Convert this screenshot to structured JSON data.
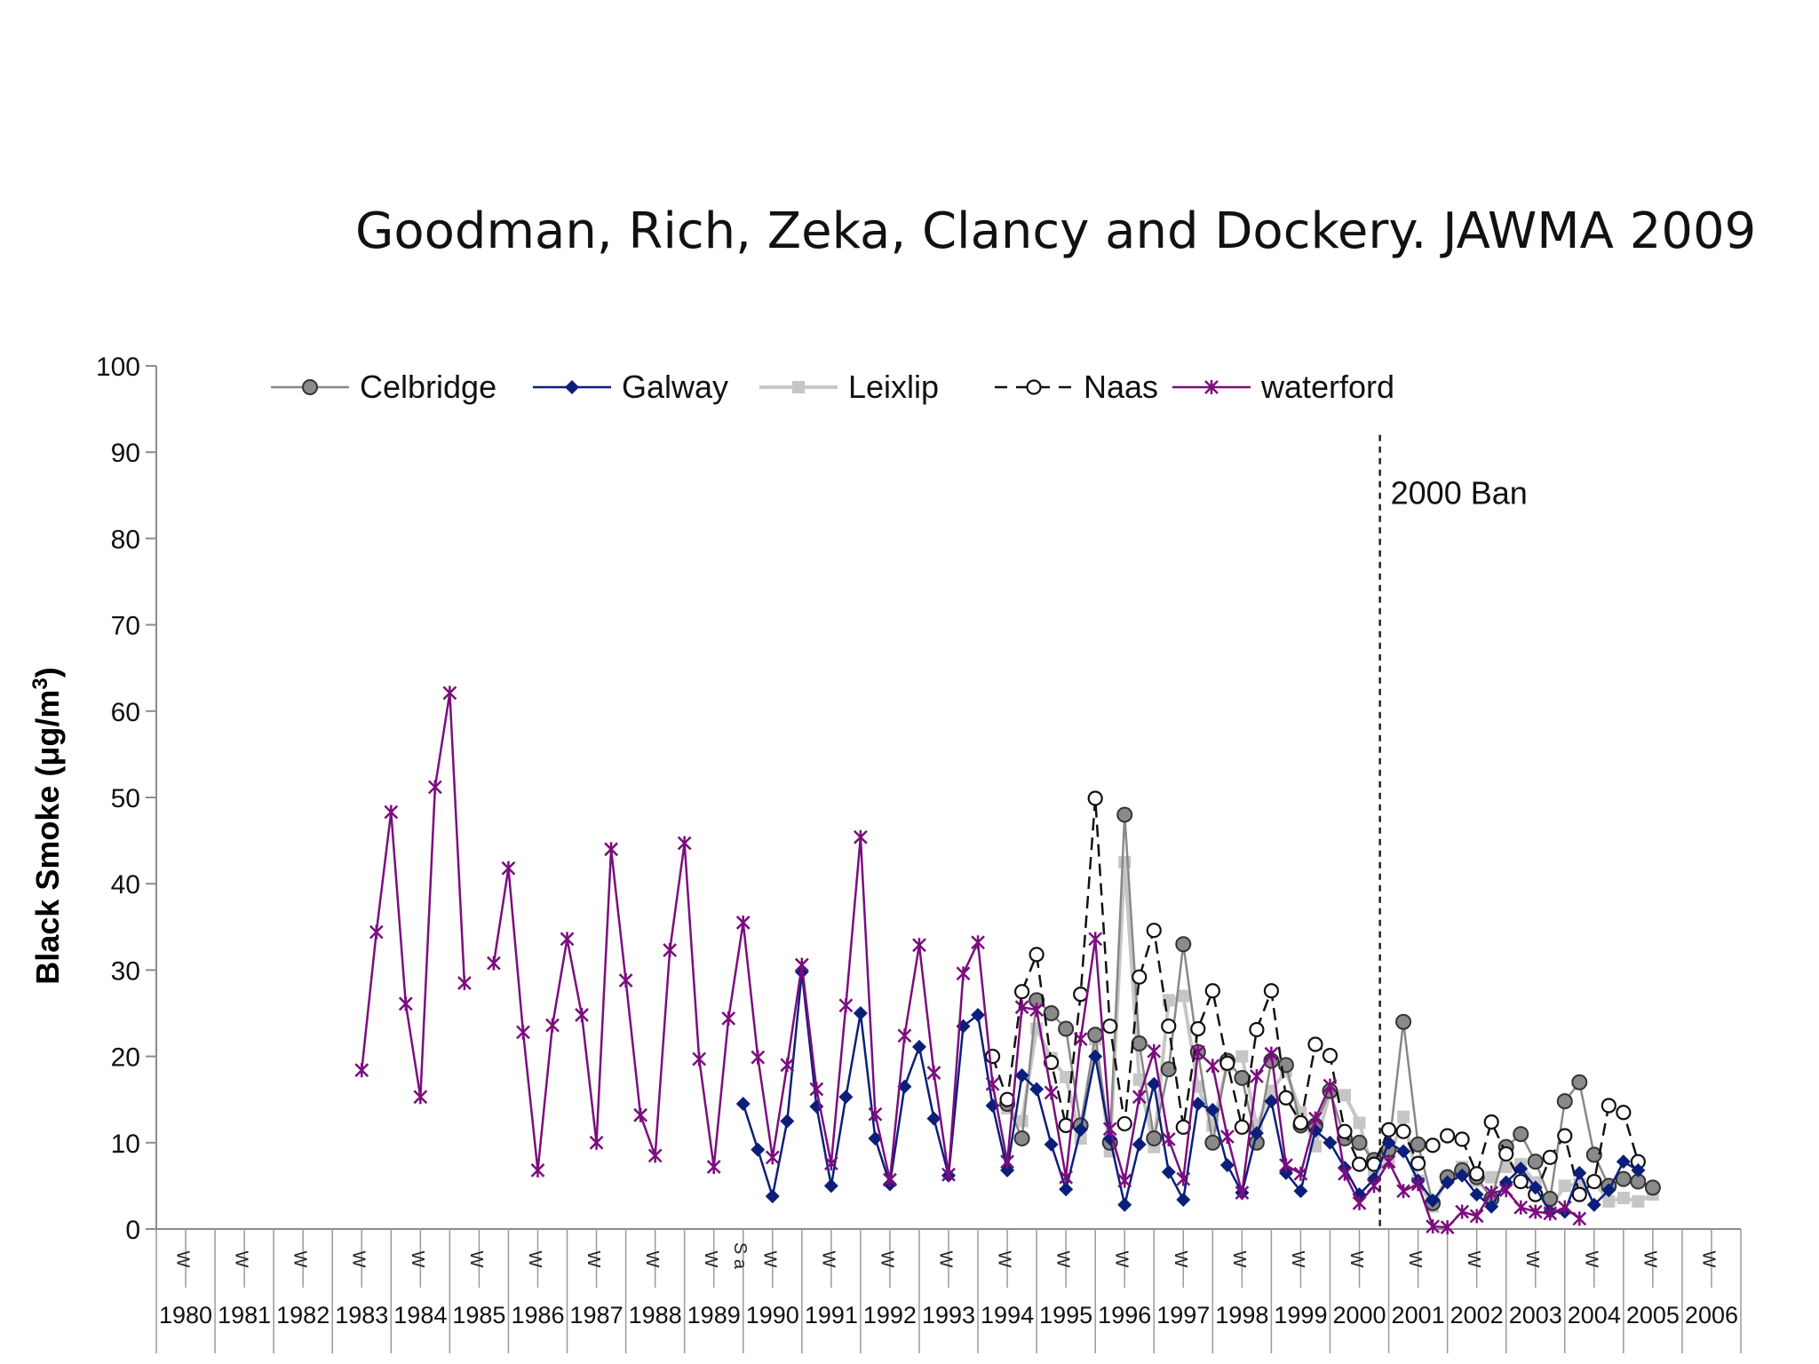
{
  "page_title": "Goodman, Rich, Zeka, Clancy and Dockery. JAWMA 2009",
  "chart_data": {
    "type": "line",
    "title": "Goodman, Rich, Zeka, Clancy and Dockery. JAWMA 2009",
    "ylabel": "Black Smoke (μg/m3)",
    "xlabel": "",
    "ylim": [
      0,
      100
    ],
    "yticks": [
      0,
      10,
      20,
      30,
      40,
      50,
      60,
      70,
      80,
      90,
      100
    ],
    "grid": false,
    "legend_position": "top",
    "x_unit": "season index (two per year: winter, summer)",
    "years": [
      "1980",
      "1981",
      "1982",
      "1983",
      "1984",
      "1985",
      "1986",
      "1987",
      "1988",
      "1989",
      "1990",
      "1991",
      "1992",
      "1993",
      "1994",
      "1995",
      "1996",
      "1997",
      "1998",
      "1999",
      "2000",
      "2001",
      "2002",
      "2003",
      "2004",
      "2005",
      "2006"
    ],
    "season_labels": [
      "W",
      "S"
    ],
    "winter_label": "W",
    "stray_label": "S a",
    "annotation": {
      "label": "2000 Ban",
      "x": 41.7
    },
    "series": [
      {
        "name": "Celbridge",
        "color": "#888888",
        "marker": "circle-filled",
        "dash": "solid",
        "points": [
          [
            29,
            14.5
          ],
          [
            29.5,
            10.5
          ],
          [
            30,
            26.5
          ],
          [
            30.5,
            25
          ],
          [
            31,
            23.2
          ],
          [
            31.5,
            12
          ],
          [
            32,
            22.5
          ],
          [
            32.5,
            10
          ],
          [
            33,
            48
          ],
          [
            33.5,
            21.5
          ],
          [
            34,
            10.5
          ],
          [
            34.5,
            18.5
          ],
          [
            35,
            33
          ],
          [
            35.5,
            20.5
          ],
          [
            36,
            10
          ],
          [
            36.5,
            19.5
          ],
          [
            37,
            17.5
          ],
          [
            37.5,
            10
          ],
          [
            38,
            19.5
          ],
          [
            38.5,
            19
          ],
          [
            39,
            12
          ],
          [
            39.5,
            12
          ],
          [
            40,
            16
          ],
          [
            40.5,
            10.5
          ],
          [
            41,
            10
          ],
          [
            41.5,
            8
          ],
          [
            42,
            9.2
          ],
          [
            42.5,
            24
          ],
          [
            43,
            9.8
          ],
          [
            43.5,
            3
          ],
          [
            44,
            6
          ],
          [
            44.5,
            6.8
          ],
          [
            45,
            6
          ],
          [
            45.5,
            3.5
          ],
          [
            46,
            9.5
          ],
          [
            46.5,
            11
          ],
          [
            47,
            7.8
          ],
          [
            47.5,
            3.5
          ],
          [
            48,
            14.8
          ],
          [
            48.5,
            17
          ],
          [
            49,
            8.6
          ],
          [
            49.5,
            5
          ],
          [
            50,
            5.8
          ],
          [
            50.5,
            5.5
          ],
          [
            51,
            4.8
          ]
        ]
      },
      {
        "name": "Galway",
        "color": "#0b1f7a",
        "marker": "diamond",
        "dash": "solid",
        "points": [
          [
            20,
            14.5
          ],
          [
            20.5,
            9.2
          ],
          [
            21,
            3.8
          ],
          [
            21.5,
            12.5
          ],
          [
            22,
            29.8
          ],
          [
            22.5,
            14.2
          ],
          [
            23,
            5
          ],
          [
            23.5,
            15.3
          ],
          [
            24,
            25
          ],
          [
            24.5,
            10.5
          ],
          [
            25,
            5.2
          ],
          [
            25.5,
            16.5
          ],
          [
            26,
            21.1
          ],
          [
            26.5,
            12.8
          ],
          [
            27,
            6.2
          ],
          [
            27.5,
            23.5
          ],
          [
            28,
            24.8
          ],
          [
            28.5,
            14.3
          ],
          [
            29,
            6.8
          ],
          [
            29.5,
            17.8
          ],
          [
            30,
            16.2
          ],
          [
            30.5,
            9.8
          ],
          [
            31,
            4.6
          ],
          [
            31.5,
            11.5
          ],
          [
            32,
            20
          ],
          [
            32.5,
            10.5
          ],
          [
            33,
            2.8
          ],
          [
            33.5,
            9.8
          ],
          [
            34,
            16.8
          ],
          [
            34.5,
            6.6
          ],
          [
            35,
            3.4
          ],
          [
            35.5,
            14.5
          ],
          [
            36,
            13.8
          ],
          [
            36.5,
            7.4
          ],
          [
            37,
            4.2
          ],
          [
            37.5,
            11.1
          ],
          [
            38,
            14.8
          ],
          [
            38.5,
            6.5
          ],
          [
            39,
            4.4
          ],
          [
            39.5,
            11.4
          ],
          [
            40,
            10
          ],
          [
            40.5,
            7.1
          ],
          [
            41,
            4
          ],
          [
            41.5,
            5.8
          ],
          [
            42,
            10
          ],
          [
            42.5,
            9
          ],
          [
            43,
            5.6
          ],
          [
            43.5,
            3.3
          ],
          [
            44,
            5.4
          ],
          [
            44.5,
            6.2
          ],
          [
            45,
            4
          ],
          [
            45.5,
            2.6
          ],
          [
            46,
            5.4
          ],
          [
            46.5,
            7
          ],
          [
            47,
            4.8
          ],
          [
            47.5,
            2
          ],
          [
            48,
            2
          ],
          [
            48.5,
            6.5
          ],
          [
            49,
            2.8
          ],
          [
            49.5,
            4.5
          ],
          [
            50,
            7.8
          ],
          [
            50.5,
            6.8
          ]
        ]
      },
      {
        "name": "Leixlip",
        "color": "#c6c6c6",
        "marker": "square",
        "dash": "solid",
        "points": [
          [
            29,
            14
          ],
          [
            29.5,
            12.5
          ],
          [
            30,
            23.2
          ],
          [
            30.5,
            19.8
          ],
          [
            31,
            17.6
          ],
          [
            31.5,
            10.5
          ],
          [
            32,
            22
          ],
          [
            32.5,
            9
          ],
          [
            33,
            42.5
          ],
          [
            33.5,
            17.3
          ],
          [
            34,
            9.5
          ],
          [
            34.5,
            26.5
          ],
          [
            35,
            27
          ],
          [
            35.5,
            16.5
          ],
          [
            36,
            12
          ],
          [
            36.5,
            19
          ],
          [
            37,
            20
          ],
          [
            37.5,
            12
          ],
          [
            38,
            16
          ],
          [
            38.5,
            18.3
          ],
          [
            39,
            13.5
          ],
          [
            39.5,
            9.6
          ],
          [
            40,
            15.8
          ],
          [
            40.5,
            15.5
          ],
          [
            41,
            12.3
          ],
          [
            41.5,
            6.2
          ],
          [
            42,
            8
          ],
          [
            42.5,
            13
          ],
          [
            43,
            5.6
          ],
          [
            43.5,
            2.6
          ],
          [
            44,
            6
          ],
          [
            44.5,
            7.2
          ],
          [
            45,
            5.6
          ],
          [
            45.5,
            6
          ],
          [
            46,
            7.2
          ],
          [
            46.5,
            7.5
          ],
          [
            47,
            5.4
          ],
          [
            47.5,
            2.4
          ],
          [
            48,
            5
          ],
          [
            48.5,
            5.2
          ],
          [
            49,
            5.5
          ],
          [
            49.5,
            3.2
          ],
          [
            50,
            3.6
          ],
          [
            50.5,
            3.2
          ],
          [
            51,
            4
          ]
        ]
      },
      {
        "name": "Naas",
        "color": "#111111",
        "marker": "circle-open",
        "dash": "dashed",
        "points": [
          [
            28.5,
            20
          ],
          [
            29,
            15
          ],
          [
            29.5,
            27.5
          ],
          [
            30,
            31.8
          ],
          [
            30.5,
            19.3
          ],
          [
            31,
            12
          ],
          [
            31.5,
            27.2
          ],
          [
            32,
            49.9
          ],
          [
            32.5,
            23.5
          ],
          [
            33,
            12.2
          ],
          [
            33.5,
            29.2
          ],
          [
            34,
            34.6
          ],
          [
            34.5,
            23.5
          ],
          [
            35,
            11.8
          ],
          [
            35.5,
            23.2
          ],
          [
            36,
            27.6
          ],
          [
            36.5,
            19.2
          ],
          [
            37,
            11.8
          ],
          [
            37.5,
            23.1
          ],
          [
            38,
            27.6
          ],
          [
            38.5,
            15.2
          ],
          [
            39,
            12.3
          ],
          [
            39.5,
            21.4
          ],
          [
            40,
            20.1
          ],
          [
            40.5,
            11.3
          ],
          [
            41,
            7.5
          ],
          [
            41.5,
            7.5
          ],
          [
            42,
            11.5
          ],
          [
            42.5,
            11.3
          ],
          [
            43,
            7.6
          ],
          [
            43.5,
            9.7
          ],
          [
            44,
            10.8
          ],
          [
            44.5,
            10.4
          ],
          [
            45,
            6.4
          ],
          [
            45.5,
            12.4
          ],
          [
            46,
            8.7
          ],
          [
            46.5,
            5.5
          ],
          [
            47,
            4
          ],
          [
            47.5,
            8.3
          ],
          [
            48,
            10.8
          ],
          [
            48.5,
            4
          ],
          [
            49,
            5.5
          ],
          [
            49.5,
            14.3
          ],
          [
            50,
            13.5
          ],
          [
            50.5,
            7.8
          ]
        ]
      },
      {
        "name": "waterford",
        "color": "#7b0d7e",
        "marker": "star",
        "dash": "solid",
        "points": [
          [
            7,
            18.4
          ],
          [
            7.5,
            34.4
          ],
          [
            8,
            48.3
          ],
          [
            8.5,
            26.1
          ],
          [
            9,
            15.3
          ],
          [
            9.5,
            51.2
          ],
          [
            10,
            62.1
          ],
          [
            10.5,
            28.5
          ],
          null,
          [
            11.5,
            30.8
          ],
          [
            12,
            41.8
          ],
          [
            12.5,
            22.8
          ],
          [
            13,
            6.8
          ],
          [
            13.5,
            23.6
          ],
          [
            14,
            33.6
          ],
          [
            14.5,
            24.8
          ],
          [
            15,
            10
          ],
          [
            15.5,
            44
          ],
          [
            16,
            28.8
          ],
          [
            16.5,
            13.2
          ],
          [
            17,
            8.5
          ],
          [
            17.5,
            32.3
          ],
          [
            18,
            44.7
          ],
          [
            18.5,
            19.7
          ],
          [
            19,
            7.2
          ],
          [
            19.5,
            24.4
          ],
          [
            20,
            35.5
          ],
          [
            20.5,
            19.9
          ],
          [
            21,
            8.3
          ],
          [
            21.5,
            19
          ],
          [
            22,
            30.6
          ],
          [
            22.5,
            16.2
          ],
          [
            23,
            7.6
          ],
          [
            23.5,
            25.9
          ],
          [
            24,
            45.4
          ],
          [
            24.5,
            13.3
          ],
          [
            25,
            5.7
          ],
          [
            25.5,
            22.4
          ],
          [
            26,
            32.9
          ],
          [
            26.5,
            18.1
          ],
          [
            27,
            6.3
          ],
          [
            27.5,
            29.6
          ],
          [
            28,
            33.2
          ],
          [
            28.5,
            16.8
          ],
          [
            29,
            7.8
          ],
          [
            29.5,
            25.7
          ],
          [
            30,
            25.4
          ],
          [
            30.5,
            15.8
          ],
          [
            31,
            6
          ],
          [
            31.5,
            22
          ],
          [
            32,
            33.6
          ],
          [
            32.5,
            11.6
          ],
          [
            33,
            5.6
          ],
          [
            33.5,
            15.3
          ],
          [
            34,
            20.6
          ],
          [
            34.5,
            10.4
          ],
          [
            35,
            5.8
          ],
          [
            35.5,
            20.5
          ],
          [
            36,
            18.9
          ],
          [
            36.5,
            10.7
          ],
          [
            37,
            4.2
          ],
          [
            37.5,
            17.7
          ],
          [
            38,
            20.3
          ],
          [
            38.5,
            7.4
          ],
          [
            39,
            6.4
          ],
          [
            39.5,
            12.8
          ],
          [
            40,
            16.6
          ],
          [
            40.5,
            6.4
          ],
          [
            41,
            3
          ],
          [
            41.5,
            5
          ],
          [
            42,
            7.8
          ],
          [
            42.5,
            4.4
          ],
          [
            43,
            5.2
          ],
          [
            43.5,
            0.3
          ],
          [
            44,
            0.2
          ],
          [
            44.5,
            2
          ],
          [
            45,
            1.5
          ],
          [
            45.5,
            4.2
          ],
          [
            46,
            4.5
          ],
          [
            46.5,
            2.5
          ],
          [
            47,
            2
          ],
          [
            47.5,
            1.8
          ],
          [
            48,
            2.5
          ],
          [
            48.5,
            1.2
          ]
        ]
      }
    ]
  }
}
